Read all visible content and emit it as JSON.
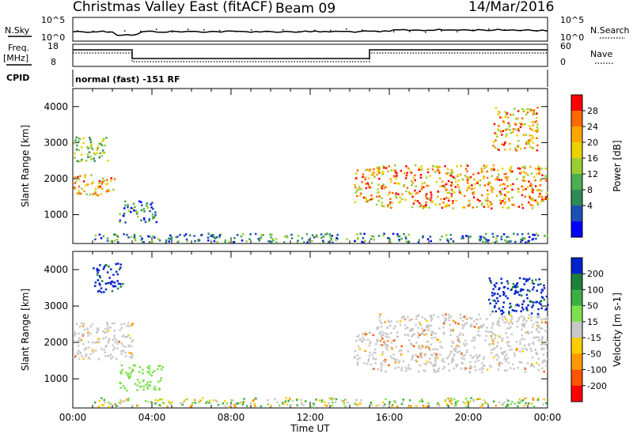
{
  "header": {
    "station": "Christmas Valley East (fitACF)",
    "beam": "Beam 09",
    "date": "14/Mar/2016"
  },
  "top_panel": {
    "left_label": "N.Sky",
    "right_label": "N.Search",
    "left_ticks": [
      "10^5",
      "10^0"
    ],
    "right_ticks": [
      "10^5",
      "10^0"
    ]
  },
  "freq_panel": {
    "left_label": "Freq.",
    "left_unit": "[MHz]",
    "right_label": "Nave",
    "left_ticks": [
      "18",
      "8"
    ],
    "right_ticks": [
      "60",
      "0"
    ]
  },
  "cpid_panel": {
    "label": "CPID",
    "text": "normal (fast) -151 RF"
  },
  "chart_data": [
    {
      "type": "heatmap",
      "panel": "power",
      "ylabel": "Slant Range [km]",
      "yticks": [
        "1000",
        "2000",
        "3000",
        "4000"
      ],
      "ylim": [
        200,
        4500
      ],
      "xticks": [
        "00:00",
        "04:00",
        "08:00",
        "12:00",
        "16:00",
        "20:00",
        "00:00"
      ],
      "xlim_hours": [
        0,
        24
      ],
      "colorbar": {
        "label": "Power [dB]",
        "ticks": [
          "28",
          "24",
          "20",
          "16",
          "12",
          "8",
          "4"
        ],
        "colors": [
          "#ff0000",
          "#ff6a00",
          "#ffa500",
          "#e9d200",
          "#9acd32",
          "#4caf50",
          "#2e8b57",
          "#1e4fb5",
          "#0000ff"
        ]
      },
      "features": [
        {
          "t": [
            0.0,
            2.1
          ],
          "range": [
            1550,
            2150
          ],
          "level": "high"
        },
        {
          "t": [
            0.0,
            1.8
          ],
          "range": [
            2500,
            3200
          ],
          "level": "mid"
        },
        {
          "t": [
            2.3,
            4.2
          ],
          "range": [
            800,
            1400
          ],
          "level": "low"
        },
        {
          "t": [
            14.2,
            15.3
          ],
          "range": [
            1350,
            2300
          ],
          "level": "high"
        },
        {
          "t": [
            15.3,
            24.0
          ],
          "range": [
            1200,
            2400
          ],
          "level": "high"
        },
        {
          "t": [
            21.2,
            23.5
          ],
          "range": [
            2800,
            4000
          ],
          "level": "high"
        },
        {
          "t": [
            1.0,
            24.0
          ],
          "range": [
            250,
            500
          ],
          "level": "low"
        }
      ]
    },
    {
      "type": "heatmap",
      "panel": "velocity",
      "ylabel": "Slant Range [km]",
      "yticks": [
        "1000",
        "2000",
        "3000",
        "4000"
      ],
      "ylim": [
        200,
        4500
      ],
      "xticks": [
        "00:00",
        "04:00",
        "08:00",
        "12:00",
        "16:00",
        "20:00",
        "00:00"
      ],
      "xlim_hours": [
        0,
        24
      ],
      "xlabel": "Time UT",
      "colorbar": {
        "label": "Velocity [m s-1]",
        "ticks": [
          "200",
          "100",
          "50",
          "15",
          "-15",
          "-50",
          "-100",
          "-200"
        ],
        "colors": [
          "#0022cc",
          "#1e7f3a",
          "#3cb043",
          "#7ee04c",
          "#c8c8c8",
          "#ffcc00",
          "#ff9900",
          "#ff5500",
          "#ff0000"
        ]
      },
      "features": [
        {
          "t": [
            0.0,
            3.0
          ],
          "range": [
            1550,
            2600
          ],
          "v": "ground"
        },
        {
          "t": [
            1.0,
            2.5
          ],
          "range": [
            3400,
            4200
          ],
          "v": "positive"
        },
        {
          "t": [
            2.3,
            4.5
          ],
          "range": [
            700,
            1400
          ],
          "v": "small-positive"
        },
        {
          "t": [
            14.2,
            15.3
          ],
          "range": [
            1300,
            2300
          ],
          "v": "ground"
        },
        {
          "t": [
            15.3,
            24.0
          ],
          "range": [
            1200,
            2800
          ],
          "v": "ground"
        },
        {
          "t": [
            21.0,
            24.0
          ],
          "range": [
            2800,
            3800
          ],
          "v": "positive"
        },
        {
          "t": [
            1.0,
            24.0
          ],
          "range": [
            250,
            500
          ],
          "v": "mixed"
        }
      ]
    }
  ]
}
